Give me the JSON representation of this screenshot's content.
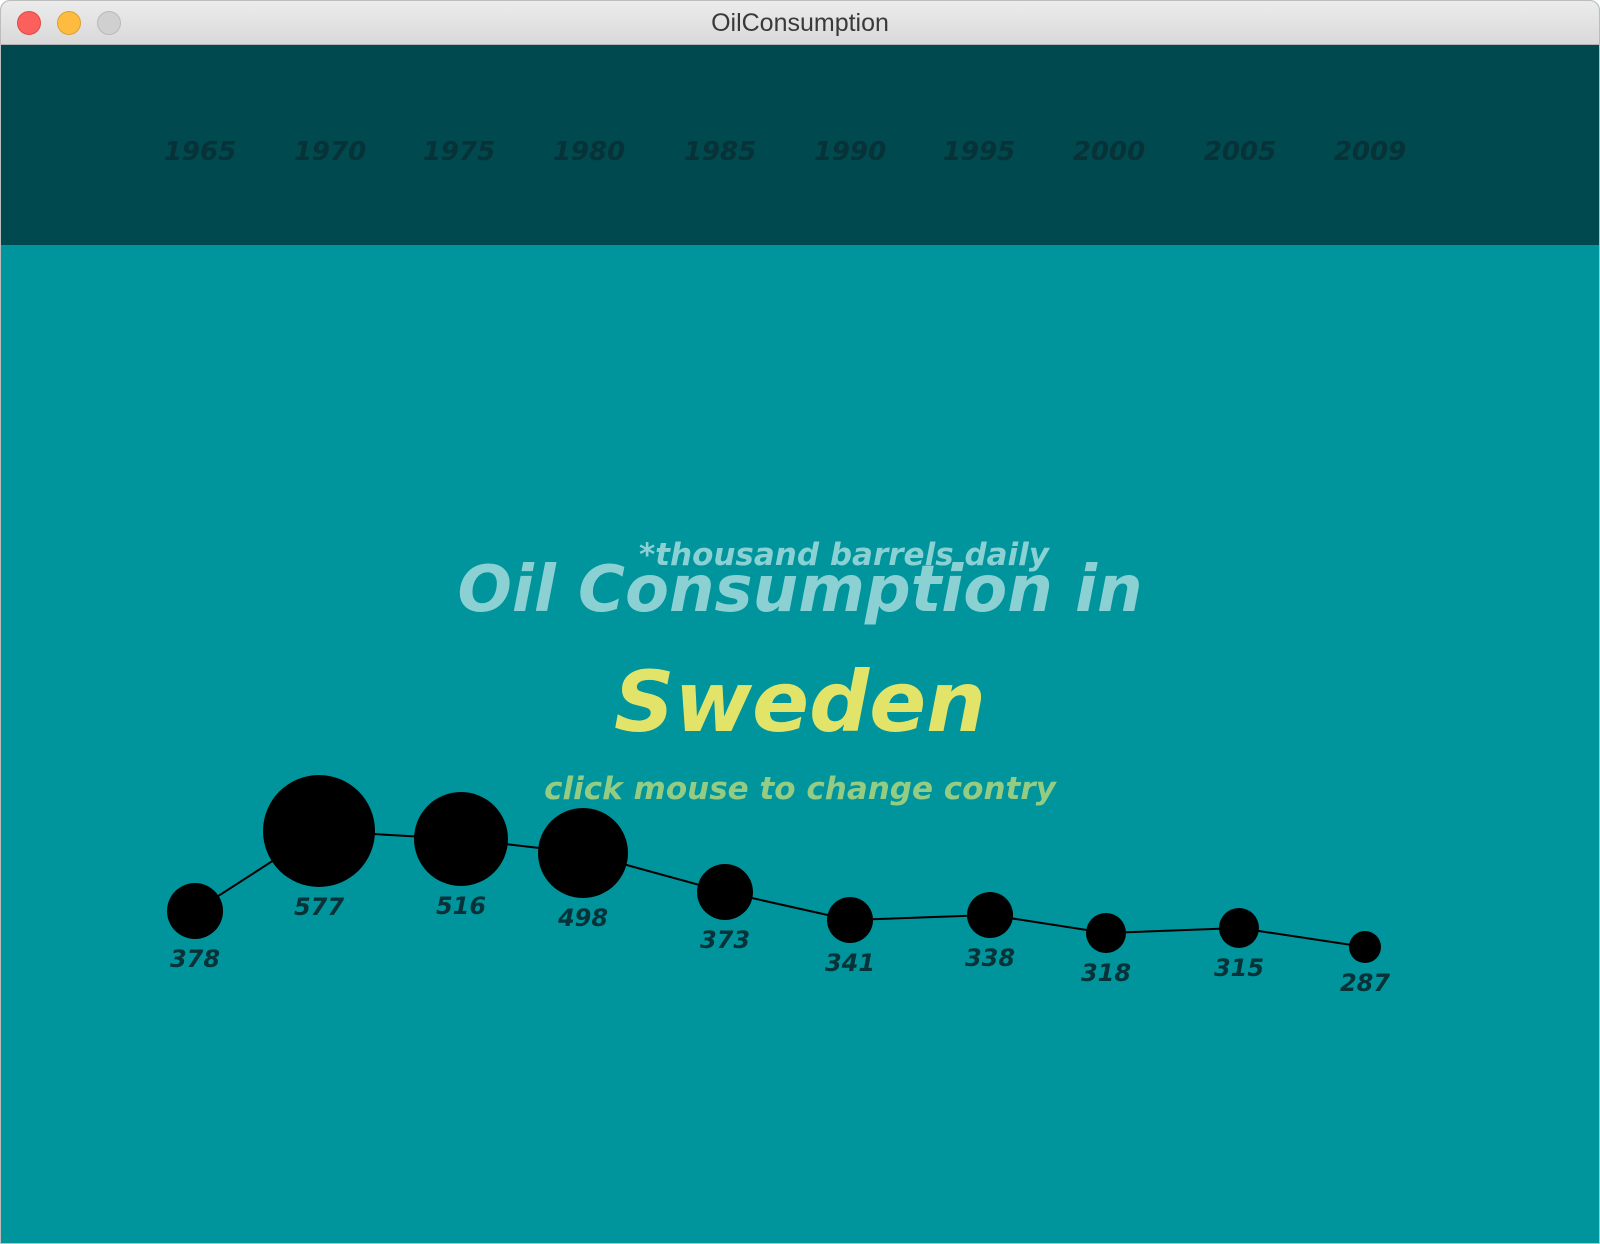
{
  "window": {
    "title": "OilConsumption"
  },
  "timeline": {
    "years": [
      "1965",
      "1970",
      "1975",
      "1980",
      "1985",
      "1990",
      "1995",
      "2000",
      "2005",
      "2009"
    ]
  },
  "labels": {
    "units_note": "*thousand barrels daily",
    "heading": "Oil Consumption in",
    "country": "Sweden",
    "hint": "click mouse to change contry"
  },
  "colors": {
    "header_band": "#00494f",
    "background": "#00949c",
    "heading": "#8bd1d3",
    "country": "#e2e46a",
    "hint": "#94cc83",
    "bubbles": "#000000"
  },
  "chart_data": {
    "type": "scatter",
    "x": [
      "1965",
      "1970",
      "1975",
      "1980",
      "1985",
      "1990",
      "1995",
      "2000",
      "2005",
      "2009"
    ],
    "series": [
      {
        "values": [
          378,
          577,
          516,
          498,
          373,
          341,
          338,
          318,
          315,
          287
        ]
      }
    ],
    "data_labels": [
      "378",
      "577",
      "516",
      "498",
      "373",
      "341",
      "338",
      "318",
      "315",
      "287"
    ]
  }
}
